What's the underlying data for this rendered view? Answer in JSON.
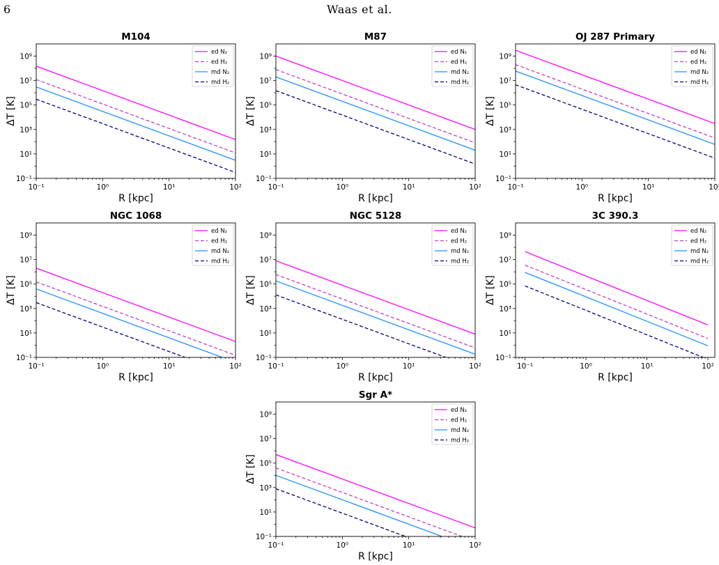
{
  "header": {
    "page_number": "6",
    "running_title": "Waas et al."
  },
  "legend": [
    {
      "label": "ed N₂",
      "color": "#ff00ff",
      "dashed": false
    },
    {
      "label": "ed H₂",
      "color": "#bf40bf",
      "dashed": true
    },
    {
      "label": "md N₂",
      "color": "#1e90ff",
      "dashed": false
    },
    {
      "label": "md H₂",
      "color": "#000080",
      "dashed": true
    }
  ],
  "chart_data": [
    {
      "type": "line",
      "title": "M104",
      "xlabel": "R [kpc]",
      "ylabel": "ΔT [K]",
      "x_scale": "log",
      "y_scale": "log",
      "xlim": [
        0.1,
        100
      ],
      "ylim": [
        0.1,
        10000000000.0
      ],
      "xticks": [
        "10⁻¹",
        "10⁰",
        "10¹",
        "10²"
      ],
      "yticks": [
        "10⁻¹",
        "10¹",
        "10³",
        "10⁵",
        "10⁷",
        "10⁹"
      ],
      "legend_position": "top-right",
      "series": [
        {
          "name": "ed N₂",
          "x": [
            0.1,
            100
          ],
          "y": [
            150000000,
            150
          ]
        },
        {
          "name": "ed H₂",
          "x": [
            0.1,
            100
          ],
          "y": [
            12000000,
            12
          ]
        },
        {
          "name": "md N₂",
          "x": [
            0.1,
            100
          ],
          "y": [
            3000000,
            3
          ]
        },
        {
          "name": "md H₂",
          "x": [
            0.1,
            100
          ],
          "y": [
            300000,
            0.3
          ]
        }
      ]
    },
    {
      "type": "line",
      "title": "M87",
      "xlabel": "R [kpc]",
      "ylabel": "ΔT [K]",
      "x_scale": "log",
      "y_scale": "log",
      "xlim": [
        0.1,
        100
      ],
      "ylim": [
        0.1,
        10000000000.0
      ],
      "xticks": [
        "10⁻¹",
        "10⁰",
        "10¹",
        "10²"
      ],
      "yticks": [
        "10⁻¹",
        "10¹",
        "10³",
        "10⁵",
        "10⁷",
        "10⁹"
      ],
      "legend_position": "top-right",
      "series": [
        {
          "name": "ed N₂",
          "x": [
            0.1,
            100
          ],
          "y": [
            1000000000,
            1000
          ]
        },
        {
          "name": "ed H₂",
          "x": [
            0.1,
            100
          ],
          "y": [
            80000000,
            80
          ]
        },
        {
          "name": "md N₂",
          "x": [
            0.1,
            100
          ],
          "y": [
            20000000,
            20
          ]
        },
        {
          "name": "md H₂",
          "x": [
            0.1,
            100
          ],
          "y": [
            1500000,
            1.5
          ]
        }
      ]
    },
    {
      "type": "line",
      "title": "OJ 287 Primary",
      "xlabel": "R [kpc]",
      "ylabel": "ΔT [K]",
      "x_scale": "log",
      "y_scale": "log",
      "xlim": [
        0.1,
        100
      ],
      "ylim": [
        0.1,
        10000000000.0
      ],
      "xticks": [
        "10⁻¹",
        "10⁰",
        "10¹",
        "10²"
      ],
      "yticks": [
        "10⁻¹",
        "10¹",
        "10³",
        "10⁵",
        "10⁷",
        "10⁹"
      ],
      "legend_position": "top-right",
      "series": [
        {
          "name": "ed N₂",
          "x": [
            0.1,
            100
          ],
          "y": [
            3000000000,
            3000
          ]
        },
        {
          "name": "ed H₂",
          "x": [
            0.1,
            100
          ],
          "y": [
            200000000,
            200
          ]
        },
        {
          "name": "md N₂",
          "x": [
            0.1,
            100
          ],
          "y": [
            60000000,
            60
          ]
        },
        {
          "name": "md H₂",
          "x": [
            0.1,
            100
          ],
          "y": [
            4500000,
            4.5
          ]
        }
      ]
    },
    {
      "type": "line",
      "title": "NGC 1068",
      "xlabel": "R [kpc]",
      "ylabel": "ΔT [K]",
      "x_scale": "log",
      "y_scale": "log",
      "xlim": [
        0.1,
        100
      ],
      "ylim": [
        0.1,
        10000000000.0
      ],
      "xticks": [
        "10⁻¹",
        "10⁰",
        "10¹",
        "10²"
      ],
      "yticks": [
        "10⁻¹",
        "10¹",
        "10³",
        "10⁵",
        "10⁷",
        "10⁹"
      ],
      "legend_position": "top-right",
      "series": [
        {
          "name": "ed N₂",
          "x": [
            0.1,
            100
          ],
          "y": [
            2000000,
            2
          ]
        },
        {
          "name": "ed H₂",
          "x": [
            0.1,
            100
          ],
          "y": [
            150000,
            0.15
          ]
        },
        {
          "name": "md N₂",
          "x": [
            0.1,
            100
          ],
          "y": [
            40000,
            0.04
          ]
        },
        {
          "name": "md H₂",
          "x": [
            0.1,
            100
          ],
          "y": [
            3000,
            0.003
          ]
        }
      ]
    },
    {
      "type": "line",
      "title": "NGC 5128",
      "xlabel": "R [kpc]",
      "ylabel": "ΔT [K]",
      "x_scale": "log",
      "y_scale": "log",
      "xlim": [
        0.1,
        100
      ],
      "ylim": [
        0.1,
        10000000000.0
      ],
      "xticks": [
        "10⁻¹",
        "10⁰",
        "10¹",
        "10²"
      ],
      "yticks": [
        "10⁻¹",
        "10¹",
        "10³",
        "10⁵",
        "10⁷",
        "10⁹"
      ],
      "legend_position": "top-right",
      "series": [
        {
          "name": "ed N₂",
          "x": [
            0.1,
            100
          ],
          "y": [
            8000000,
            8
          ]
        },
        {
          "name": "ed H₂",
          "x": [
            0.1,
            100
          ],
          "y": [
            600000,
            0.6
          ]
        },
        {
          "name": "md N₂",
          "x": [
            0.1,
            100
          ],
          "y": [
            180000,
            0.18
          ]
        },
        {
          "name": "md H₂",
          "x": [
            0.1,
            100
          ],
          "y": [
            13000,
            0.013
          ]
        }
      ]
    },
    {
      "type": "line",
      "title": "3C 390.3",
      "xlabel": "R [kpc]",
      "ylabel": "ΔT [K]",
      "x_scale": "log",
      "y_scale": "log",
      "xlim": [
        0.07,
        130
      ],
      "ylim": [
        0.1,
        10000000000.0
      ],
      "xticks": [
        "10⁻¹",
        "10⁰",
        "10¹",
        "10²"
      ],
      "yticks": [
        "10⁻¹",
        "10¹",
        "10³",
        "10⁵",
        "10⁷",
        "10⁹"
      ],
      "legend_position": "top-right",
      "series": [
        {
          "name": "ed N₂",
          "x": [
            0.1,
            100
          ],
          "y": [
            45000000,
            45
          ]
        },
        {
          "name": "ed H₂",
          "x": [
            0.1,
            100
          ],
          "y": [
            3500000,
            3.5
          ]
        },
        {
          "name": "md N₂",
          "x": [
            0.1,
            100
          ],
          "y": [
            900000,
            0.9
          ]
        },
        {
          "name": "md H₂",
          "x": [
            0.1,
            100
          ],
          "y": [
            70000,
            0.07
          ]
        }
      ]
    },
    {
      "type": "line",
      "title": "Sgr A*",
      "xlabel": "R [kpc]",
      "ylabel": "ΔT [K]",
      "x_scale": "log",
      "y_scale": "log",
      "xlim": [
        0.1,
        100
      ],
      "ylim": [
        0.1,
        10000000000.0
      ],
      "xticks": [
        "10⁻¹",
        "10⁰",
        "10¹",
        "10²"
      ],
      "yticks": [
        "10⁻¹",
        "10¹",
        "10³",
        "10⁵",
        "10⁷",
        "10⁹"
      ],
      "legend_position": "top-right",
      "series": [
        {
          "name": "ed N₂",
          "x": [
            0.1,
            100
          ],
          "y": [
            500000,
            0.5
          ]
        },
        {
          "name": "ed H₂",
          "x": [
            0.1,
            100
          ],
          "y": [
            40000,
            0.04
          ]
        },
        {
          "name": "md N₂",
          "x": [
            0.1,
            100
          ],
          "y": [
            10000,
            0.01
          ]
        },
        {
          "name": "md H₂",
          "x": [
            0.1,
            100
          ],
          "y": [
            800,
            0.0008
          ]
        }
      ]
    }
  ]
}
